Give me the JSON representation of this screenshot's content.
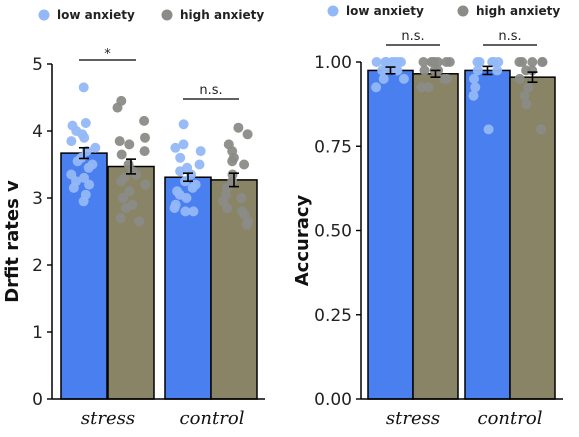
{
  "colors": {
    "low": "#4a7ff0",
    "high": "#8a8466",
    "low_point": "#93b8f7",
    "high_point": "#8b8b88"
  },
  "chart_data": [
    {
      "type": "bar",
      "ylabel": "Drfit rates v",
      "ylim": [
        0,
        5
      ],
      "yticks": [
        "0",
        "1",
        "2",
        "3",
        "4",
        "5"
      ],
      "categories": [
        "stress",
        "control"
      ],
      "legend": [
        "low anxiety",
        "high anxiety"
      ],
      "series": [
        {
          "name": "low anxiety",
          "values": [
            3.67,
            3.31
          ],
          "errors": [
            0.08,
            0.06
          ],
          "points": [
            [
              4.65,
              4.12,
              4.08,
              4.0,
              3.95,
              3.9,
              3.85,
              3.75,
              3.7,
              3.6,
              3.55,
              3.5,
              3.45,
              3.35,
              3.3,
              3.25,
              3.2,
              3.15,
              3.05,
              2.95
            ],
            [
              4.1,
              3.8,
              3.75,
              3.7,
              3.6,
              3.5,
              3.45,
              3.4,
              3.35,
              3.25,
              3.2,
              3.15,
              3.1,
              3.05,
              3.0,
              2.9,
              2.85,
              2.8,
              2.8
            ]
          ]
        },
        {
          "name": "high anxiety",
          "values": [
            3.47,
            3.27
          ],
          "errors": [
            0.11,
            0.1
          ],
          "points": [
            [
              4.45,
              4.35,
              4.15,
              3.9,
              3.85,
              3.8,
              3.7,
              3.65,
              3.5,
              3.4,
              3.35,
              3.3,
              3.25,
              3.2,
              3.1,
              3.0,
              2.9,
              2.85,
              2.7,
              2.65
            ],
            [
              4.05,
              3.95,
              3.8,
              3.7,
              3.6,
              3.55,
              3.5,
              3.35,
              3.25,
              3.15,
              3.05,
              3.0,
              2.95,
              2.85,
              2.8,
              2.75,
              2.65,
              2.6
            ]
          ]
        }
      ],
      "significance": [
        "*",
        "n.s."
      ]
    },
    {
      "type": "bar",
      "ylabel": "Accuracy",
      "ylim": [
        0,
        1
      ],
      "yticks": [
        "0.00",
        "0.25",
        "0.50",
        "0.75",
        "1.00"
      ],
      "categories": [
        "stress",
        "control"
      ],
      "legend": [
        "low anxiety",
        "high anxiety"
      ],
      "series": [
        {
          "name": "low anxiety",
          "values": [
            0.975,
            0.975
          ],
          "errors": [
            0.01,
            0.012
          ],
          "points": [
            [
              1.0,
              1.0,
              1.0,
              1.0,
              1.0,
              1.0,
              1.0,
              0.975,
              0.975,
              0.975,
              0.975,
              0.95,
              0.95,
              0.925
            ],
            [
              1.0,
              1.0,
              1.0,
              1.0,
              1.0,
              1.0,
              0.975,
              0.975,
              0.95,
              0.925,
              0.9,
              0.8
            ]
          ]
        },
        {
          "name": "high anxiety",
          "values": [
            0.965,
            0.955
          ],
          "errors": [
            0.01,
            0.015
          ],
          "points": [
            [
              1.0,
              1.0,
              1.0,
              1.0,
              1.0,
              1.0,
              1.0,
              0.975,
              0.975,
              0.975,
              0.95,
              0.95,
              0.925,
              0.925
            ],
            [
              1.0,
              1.0,
              1.0,
              1.0,
              1.0,
              0.975,
              0.975,
              0.95,
              0.925,
              0.9,
              0.875,
              0.8
            ]
          ]
        }
      ],
      "significance": [
        "n.s.",
        "n.s."
      ]
    }
  ]
}
